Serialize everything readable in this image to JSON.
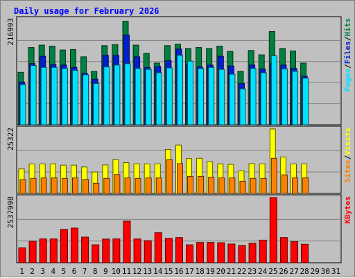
{
  "chart_data": {
    "type": "bar",
    "title": "Daily usage for February 2026",
    "x": [
      "1",
      "2",
      "3",
      "4",
      "5",
      "6",
      "7",
      "8",
      "9",
      "10",
      "11",
      "12",
      "13",
      "14",
      "15",
      "16",
      "17",
      "18",
      "19",
      "20",
      "21",
      "22",
      "23",
      "24",
      "25",
      "26",
      "27",
      "28",
      "29",
      "30",
      "31"
    ],
    "weekend_days": [
      "1",
      "7",
      "8",
      "14",
      "15",
      "21",
      "22",
      "28",
      "29"
    ],
    "panels": [
      {
        "name": "hits-files-pages",
        "max_label": "216993",
        "ymax": 216993,
        "legend": [
          "Pages",
          "Files",
          "Hits"
        ],
        "series": [
          {
            "name": "Hits",
            "color": "#008040",
            "values": [
              108000,
              159000,
              164000,
              162000,
              154000,
              155000,
              140000,
              110000,
              163000,
              165000,
              213000,
              164000,
              147000,
              127000,
              163000,
              166000,
              157000,
              159000,
              157000,
              162000,
              151000,
              110000,
              153000,
              144000,
              192000,
              157000,
              152000,
              127000
            ]
          },
          {
            "name": "Files",
            "color": "#0020d0",
            "values": [
              88000,
              126000,
              141000,
              124000,
              123000,
              118000,
              106000,
              94000,
              143000,
              143000,
              185000,
              140000,
              118000,
              120000,
              132000,
              156000,
              124000,
              119000,
              123000,
              141000,
              121000,
              85000,
              123000,
              115000,
              127000,
              123000,
              116000,
              100000
            ]
          },
          {
            "name": "Pages",
            "color": "#00e0ff",
            "values": [
              83000,
              122000,
              118000,
              118000,
              116000,
              112000,
              103000,
              85000,
              119000,
              123000,
              126000,
              116000,
              114000,
              107000,
              117000,
              143000,
              131000,
              116000,
              118000,
              114000,
              104000,
              74000,
              116000,
              107000,
              142000,
              115000,
              110000,
              96000
            ]
          }
        ]
      },
      {
        "name": "visits-sites",
        "max_label": "25322",
        "ymax": 25322,
        "legend": [
          "Sites",
          "Visits"
        ],
        "series": [
          {
            "name": "Visits",
            "color": "#ffff00",
            "values": [
              9600,
              11600,
              11600,
              11600,
              11100,
              11100,
              10400,
              8400,
              11200,
              13300,
              12100,
              11600,
              11600,
              11600,
              17300,
              19000,
              13700,
              13800,
              12500,
              11600,
              11400,
              8900,
              11700,
              11600,
              25322,
              14300,
              11600,
              11600
            ]
          },
          {
            "name": "Sites",
            "color": "#ff8000",
            "values": [
              5400,
              5900,
              6100,
              6100,
              5900,
              6100,
              5500,
              4000,
              5900,
              7400,
              6100,
              5900,
              6100,
              6100,
              13300,
              11700,
              6700,
              6700,
              6400,
              6100,
              6100,
              4800,
              5900,
              5900,
              13800,
              7300,
              6100,
              6100
            ]
          }
        ]
      },
      {
        "name": "kbytes",
        "max_label": "2537998",
        "ymax": 2537998,
        "legend": [
          "KBytes"
        ],
        "series": [
          {
            "name": "KBytes",
            "color": "#ff0000",
            "values": [
              580000,
              840000,
              930000,
              930000,
              1300000,
              1350000,
              1000000,
              700000,
              920000,
              930000,
              1620000,
              930000,
              860000,
              1170000,
              950000,
              980000,
              700000,
              790000,
              790000,
              780000,
              730000,
              670000,
              760000,
              880000,
              2537998,
              980000,
              820000,
              720000
            ]
          }
        ]
      }
    ]
  },
  "colors": {
    "background": "#c0c0c0",
    "plot_background": "#c0c0c0",
    "gridline": "#808080",
    "weekday_tick": "#0000ff",
    "weekend_tick": "#008040"
  }
}
